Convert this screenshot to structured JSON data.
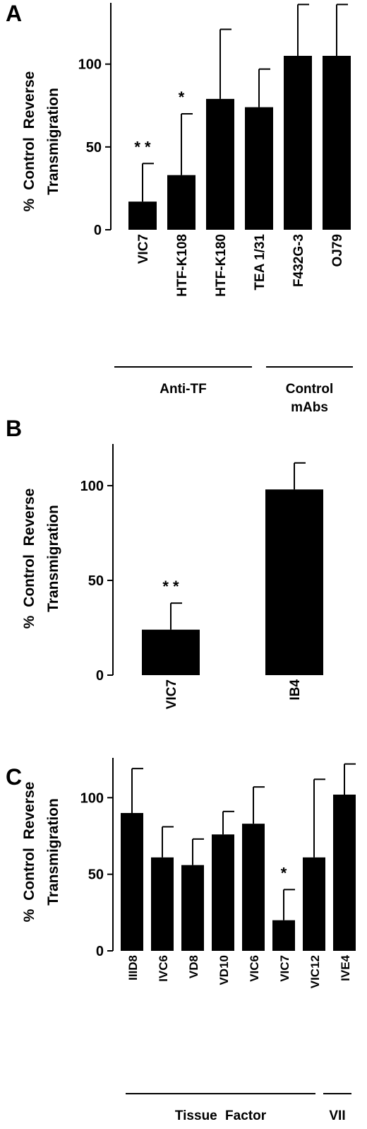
{
  "chart_data": [
    {
      "panel": "A",
      "type": "bar",
      "ylabel_lines": [
        "% Control Reverse",
        "Transmigration"
      ],
      "yticks": [
        0,
        50,
        100
      ],
      "ylim": [
        0,
        137
      ],
      "categories": [
        "VIC7",
        "HTF-K108",
        "HTF-K180",
        "TEA 1/31",
        "F432G-3",
        "OJ79"
      ],
      "values": [
        17,
        33,
        79,
        74,
        105,
        105
      ],
      "errors": [
        23,
        37,
        42,
        23,
        31,
        31
      ],
      "significance": [
        "* *",
        "*",
        "",
        "",
        "",
        ""
      ],
      "groups": [
        {
          "lines": [
            "Anti-TF"
          ],
          "from": 0,
          "to": 2
        },
        {
          "lines": [
            "Control",
            "mAbs"
          ],
          "from": 3,
          "to": 5
        }
      ],
      "color": "#000000"
    },
    {
      "panel": "B",
      "type": "bar",
      "ylabel_lines": [
        "% Control Reverse",
        "Transmigration"
      ],
      "yticks": [
        0,
        50,
        100
      ],
      "ylim": [
        0,
        122
      ],
      "categories": [
        "VIC7",
        "IB4"
      ],
      "values": [
        24,
        98
      ],
      "errors": [
        14,
        14
      ],
      "significance": [
        "* *",
        ""
      ],
      "groups": [],
      "color": "#000000"
    },
    {
      "panel": "C",
      "type": "bar",
      "ylabel_lines": [
        "% Control Reverse",
        "Transmigration"
      ],
      "yticks": [
        0,
        50,
        100
      ],
      "ylim": [
        0,
        126
      ],
      "categories": [
        "IIID8",
        "IVC6",
        "VD8",
        "VD10",
        "VIC6",
        "VIC7",
        "VIC12",
        "IVE4"
      ],
      "values": [
        90,
        61,
        56,
        76,
        83,
        20,
        61,
        102
      ],
      "errors": [
        29,
        20,
        17,
        15,
        24,
        20,
        51,
        20
      ],
      "significance": [
        "",
        "",
        "",
        "",
        "",
        "*",
        "",
        ""
      ],
      "groups": [
        {
          "lines": [
            "Tissue Factor"
          ],
          "from": 0,
          "to": 6
        },
        {
          "lines": [
            "VII"
          ],
          "from": 7,
          "to": 7
        }
      ],
      "color": "#000000"
    }
  ]
}
